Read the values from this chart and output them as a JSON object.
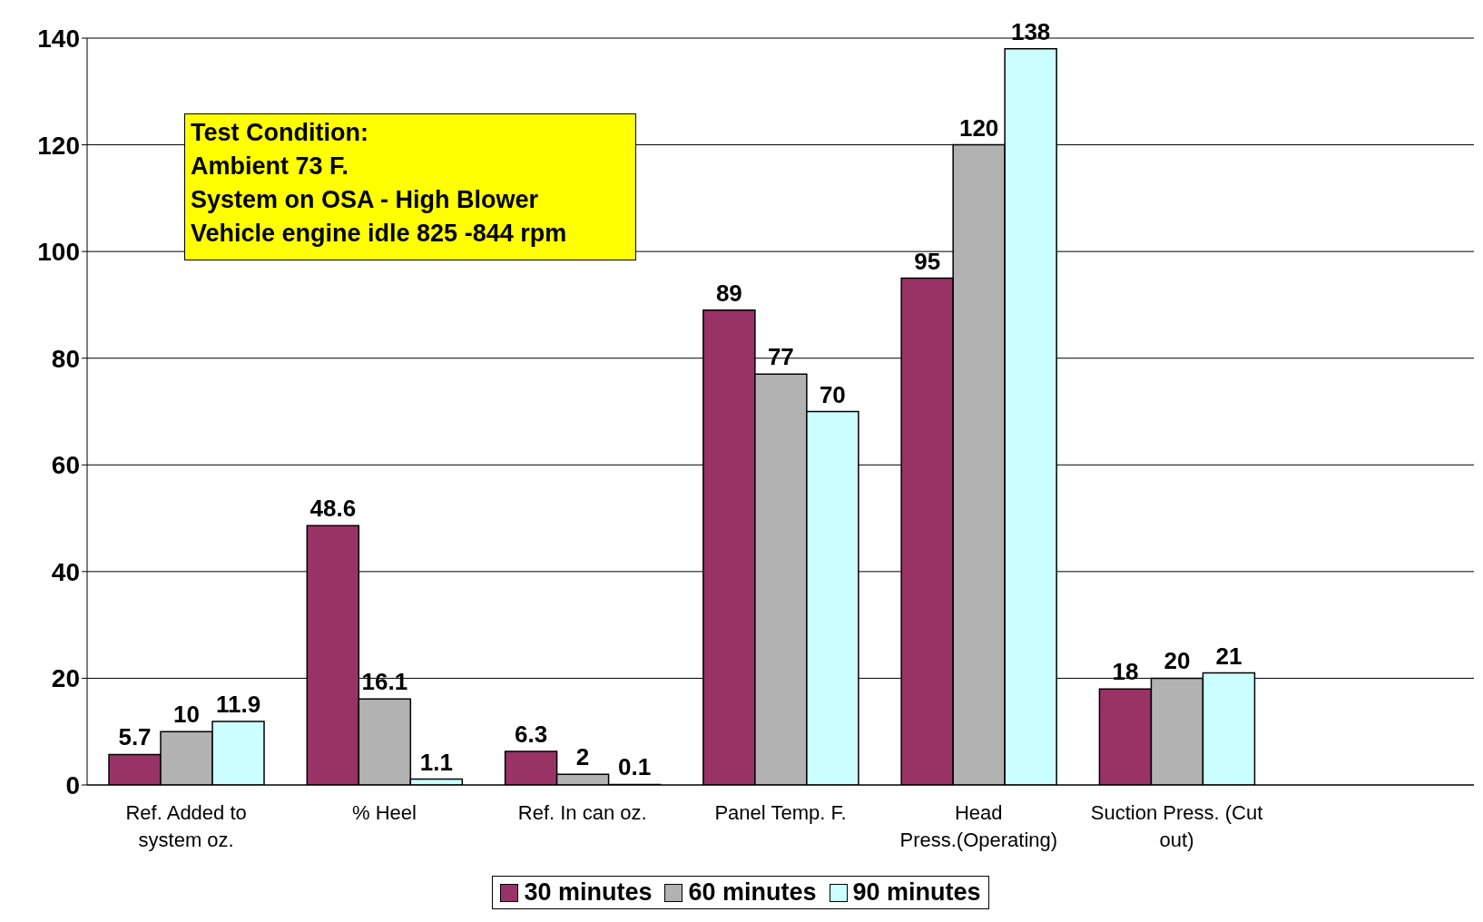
{
  "chart_data": {
    "type": "bar",
    "categories": [
      "Ref. Added to system oz.",
      "% Heel",
      "Ref. In can oz.",
      "Panel Temp. F.",
      "Head Press.(Operating)",
      "Suction Press. (Cut out)",
      null
    ],
    "series": [
      {
        "name": "30 minutes",
        "color": "#993366",
        "values": [
          5.7,
          48.6,
          6.3,
          89,
          95,
          18,
          null
        ]
      },
      {
        "name": "60 minutes",
        "color": "#b2b2b2",
        "values": [
          10,
          16.1,
          2,
          77,
          120,
          20,
          null
        ]
      },
      {
        "name": "90 minutes",
        "color": "#ccffff",
        "values": [
          11.9,
          1.1,
          0.1,
          70,
          138,
          21,
          null
        ]
      }
    ],
    "ylim": [
      0,
      140
    ],
    "yticks": [
      0,
      20,
      40,
      60,
      80,
      100,
      120,
      140
    ],
    "grid": "y",
    "legend": "bottom",
    "data_labels": true,
    "annotations": [
      "Test Condition:\nAmbient 73 F.\nSystem on OSA - High Blower\nVehicle engine idle 825 -844 rpm"
    ]
  }
}
